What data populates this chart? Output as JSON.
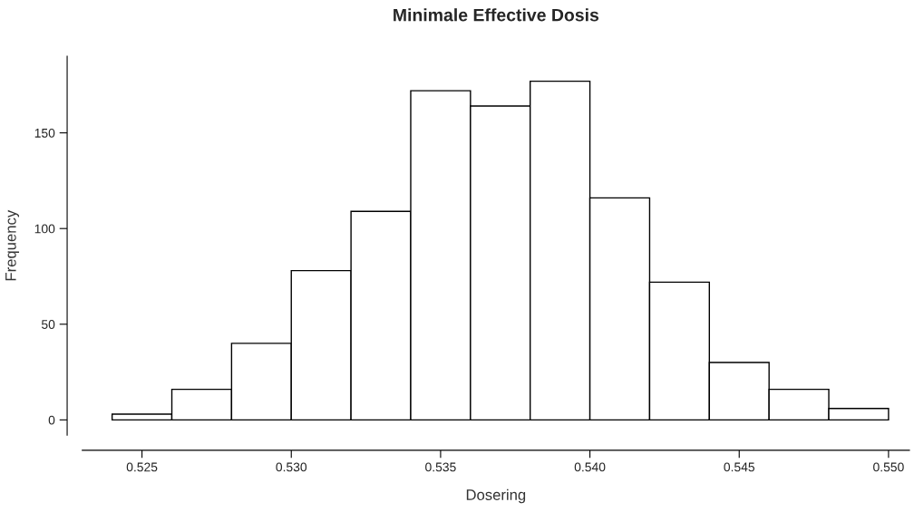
{
  "chart_data": {
    "type": "histogram",
    "title": "Minimale Effective Dosis",
    "xlabel": "Dosering",
    "ylabel": "Frequency",
    "bins": [
      0.524,
      0.526,
      0.528,
      0.53,
      0.532,
      0.534,
      0.536,
      0.538,
      0.54,
      0.542,
      0.544,
      0.546,
      0.548,
      0.55
    ],
    "values": [
      3,
      16,
      40,
      78,
      109,
      172,
      164,
      177,
      116,
      72,
      30,
      16,
      6
    ],
    "color": "#ffffff",
    "xlim": [
      0.523,
      0.5507
    ],
    "ylim": [
      -8,
      190
    ],
    "xticks": [
      {
        "value": 0.525,
        "label": "0.525"
      },
      {
        "value": 0.53,
        "label": "0.530"
      },
      {
        "value": 0.535,
        "label": "0.535"
      },
      {
        "value": 0.54,
        "label": "0.540"
      },
      {
        "value": 0.545,
        "label": "0.545"
      },
      {
        "value": 0.55,
        "label": "0.550"
      }
    ],
    "yticks": [
      0,
      50,
      100,
      150
    ],
    "grid": false
  }
}
